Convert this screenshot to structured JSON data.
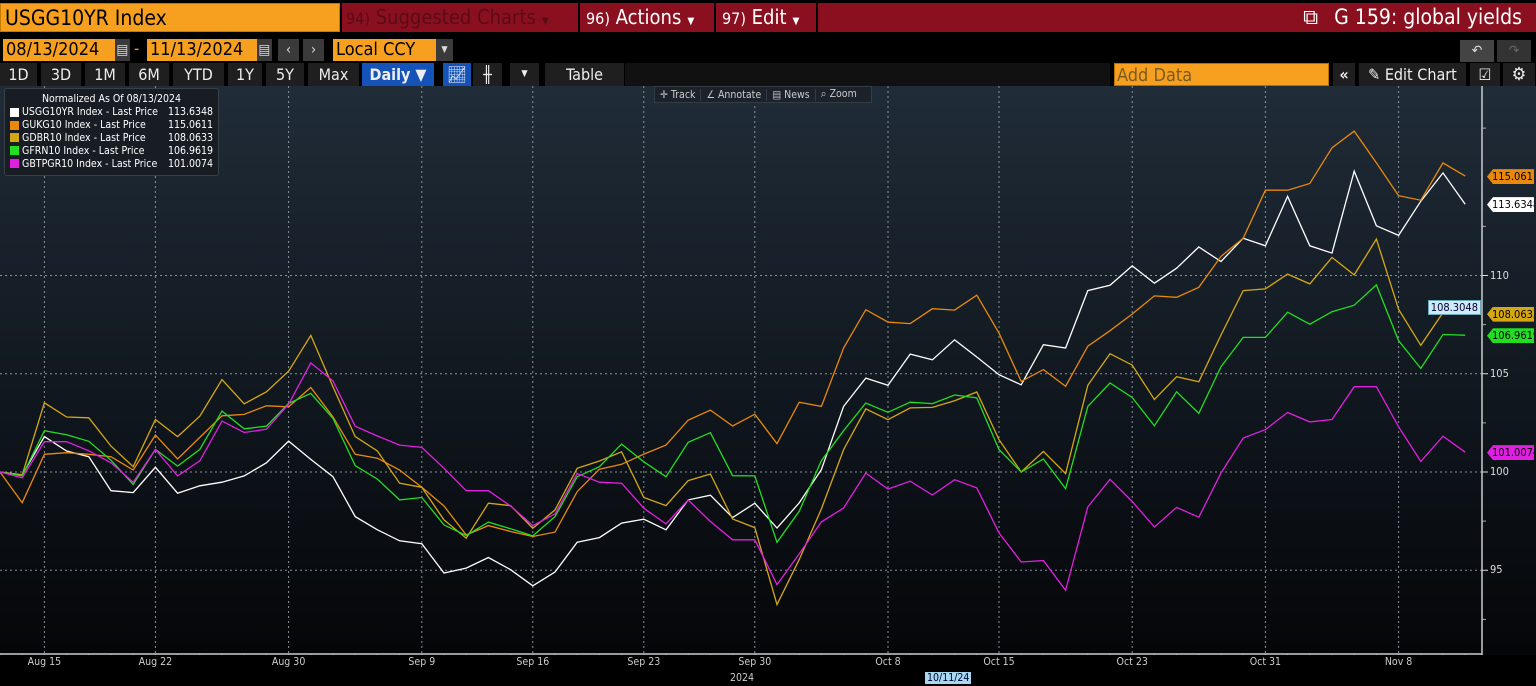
{
  "header": {
    "security": "USGG10YR Index",
    "suggested": {
      "num": "94)",
      "label": "Suggested Charts"
    },
    "actions": {
      "num": "96)",
      "label": "Actions"
    },
    "edit": {
      "num": "97)",
      "label": "Edit"
    },
    "chart_title": "G 159: global yields"
  },
  "controls": {
    "start_date": "08/13/2024",
    "end_date": "11/13/2024",
    "separator": "-",
    "currency": "Local CCY",
    "periods": [
      "1D",
      "3D",
      "1M",
      "6M",
      "YTD",
      "1Y",
      "5Y",
      "Max"
    ],
    "frequency": "Daily ▼",
    "table_label": "Table",
    "add_data_placeholder": "Add Data",
    "edit_chart": "Edit Chart"
  },
  "chart_tools": [
    "Track",
    "Annotate",
    "News",
    "Zoom"
  ],
  "legend": {
    "title": "Normalized As Of 08/13/2024"
  },
  "crosshair": {
    "value": "108.3048",
    "date": "10/11/24"
  },
  "chart_data": {
    "type": "line",
    "title": "",
    "xlabel": "2024",
    "ylim": [
      90.7,
      119.5
    ],
    "grid": true,
    "legend_position": "top-left",
    "y_ticks": [
      95,
      100,
      105,
      110
    ],
    "x_ticks": [
      {
        "date": "2024-08-15",
        "label": "Aug 15"
      },
      {
        "date": "2024-08-22",
        "label": "Aug 22"
      },
      {
        "date": "2024-08-30",
        "label": "Aug 30"
      },
      {
        "date": "2024-09-09",
        "label": "Sep 9"
      },
      {
        "date": "2024-09-16",
        "label": "Sep 16"
      },
      {
        "date": "2024-09-23",
        "label": "Sep 23"
      },
      {
        "date": "2024-09-30",
        "label": "Sep 30"
      },
      {
        "date": "2024-10-08",
        "label": "Oct 8"
      },
      {
        "date": "2024-10-15",
        "label": "Oct 15"
      },
      {
        "date": "2024-10-23",
        "label": "Oct 23"
      },
      {
        "date": "2024-10-31",
        "label": "Oct 31"
      },
      {
        "date": "2024-11-08",
        "label": "Nov 8"
      }
    ],
    "x": [
      "2024-08-13",
      "2024-08-14",
      "2024-08-15",
      "2024-08-16",
      "2024-08-19",
      "2024-08-20",
      "2024-08-21",
      "2024-08-22",
      "2024-08-23",
      "2024-08-26",
      "2024-08-27",
      "2024-08-28",
      "2024-08-29",
      "2024-08-30",
      "2024-09-02",
      "2024-09-03",
      "2024-09-04",
      "2024-09-05",
      "2024-09-06",
      "2024-09-09",
      "2024-09-10",
      "2024-09-11",
      "2024-09-12",
      "2024-09-13",
      "2024-09-16",
      "2024-09-17",
      "2024-09-18",
      "2024-09-19",
      "2024-09-20",
      "2024-09-23",
      "2024-09-24",
      "2024-09-25",
      "2024-09-26",
      "2024-09-27",
      "2024-09-30",
      "2024-10-01",
      "2024-10-02",
      "2024-10-03",
      "2024-10-04",
      "2024-10-07",
      "2024-10-08",
      "2024-10-09",
      "2024-10-10",
      "2024-10-11",
      "2024-10-14",
      "2024-10-15",
      "2024-10-16",
      "2024-10-17",
      "2024-10-18",
      "2024-10-21",
      "2024-10-22",
      "2024-10-23",
      "2024-10-24",
      "2024-10-25",
      "2024-10-28",
      "2024-10-29",
      "2024-10-30",
      "2024-10-31",
      "2024-11-01",
      "2024-11-04",
      "2024-11-05",
      "2024-11-06",
      "2024-11-07",
      "2024-11-08",
      "2024-11-11",
      "2024-11-12",
      "2024-11-13"
    ],
    "series": [
      {
        "name": "USGG10YR Index - Last Price",
        "last": "113.6348",
        "color": "#ffffff",
        "values": [
          100,
          99.85,
          101.8,
          101.07,
          100.78,
          99.05,
          98.95,
          100.24,
          98.92,
          99.3,
          99.48,
          99.8,
          100.47,
          101.57,
          100.64,
          99.76,
          97.73,
          97.06,
          96.5,
          96.35,
          94.86,
          95.11,
          95.65,
          95.03,
          94.21,
          94.91,
          96.43,
          96.66,
          97.4,
          97.6,
          97.06,
          98.58,
          98.82,
          97.68,
          98.41,
          97.15,
          98.43,
          100.12,
          103.34,
          104.78,
          104.41,
          106.0,
          105.71,
          106.73,
          105.85,
          104.95,
          104.44,
          106.48,
          106.31,
          109.23,
          109.5,
          110.49,
          109.61,
          110.37,
          111.45,
          110.71,
          111.9,
          111.51,
          114.03,
          111.51,
          111.14,
          115.31,
          112.53,
          112.04,
          113.78,
          115.22,
          113.63
        ]
      },
      {
        "name": "GUKG10 Index - Last Price",
        "last": "115.0611",
        "color": "#e8890c",
        "values": [
          100,
          98.44,
          100.9,
          100.98,
          100.9,
          100.78,
          100.1,
          101.88,
          100.66,
          101.76,
          102.86,
          102.93,
          103.37,
          103.32,
          104.3,
          102.8,
          100.9,
          100.7,
          100.1,
          99.22,
          98.27,
          96.8,
          97.27,
          96.97,
          96.72,
          96.94,
          99.0,
          100.14,
          100.39,
          100.91,
          101.37,
          102.64,
          103.15,
          102.34,
          102.94,
          101.44,
          103.55,
          103.34,
          106.31,
          108.26,
          107.63,
          107.55,
          108.31,
          108.24,
          109.0,
          107.07,
          104.61,
          105.21,
          104.36,
          106.4,
          107.19,
          108.04,
          108.96,
          108.89,
          109.4,
          110.97,
          111.9,
          114.34,
          114.34,
          114.68,
          116.5,
          117.35,
          115.73,
          114.06,
          113.83,
          115.73,
          115.06
        ]
      },
      {
        "name": "GDBR10 Index - Last Price",
        "last": "108.0633",
        "color": "#d4a814",
        "values": [
          100,
          99.85,
          103.52,
          102.8,
          102.76,
          101.32,
          100.27,
          102.67,
          101.8,
          102.84,
          104.7,
          103.47,
          104.08,
          105.13,
          106.95,
          104.33,
          101.8,
          101.07,
          99.43,
          99.22,
          97.56,
          96.63,
          98.41,
          98.29,
          97.14,
          98.07,
          100.19,
          100.56,
          101.03,
          98.7,
          98.29,
          99.56,
          99.9,
          97.61,
          97.17,
          93.25,
          95.54,
          98.12,
          101.14,
          103.21,
          102.66,
          103.26,
          103.29,
          103.63,
          104.07,
          101.65,
          100.0,
          101.05,
          99.92,
          104.41,
          106.02,
          105.44,
          103.69,
          104.85,
          104.59,
          106.97,
          109.23,
          109.32,
          110.07,
          109.57,
          110.92,
          110.03,
          111.85,
          108.28,
          106.45,
          108.11,
          108.06
        ]
      },
      {
        "name": "GFRN10 Index - Last Price",
        "last": "106.9619",
        "color": "#22dd22",
        "values": [
          100,
          99.8,
          102.1,
          101.9,
          101.56,
          100.6,
          99.37,
          101.15,
          100.3,
          101.15,
          103.1,
          102.2,
          102.33,
          103.49,
          104,
          102.73,
          100.32,
          99.64,
          98.58,
          98.7,
          97.31,
          96.77,
          97.45,
          97.11,
          96.75,
          97.73,
          99.76,
          100.27,
          101.42,
          100.52,
          99.76,
          101.51,
          102.0,
          99.81,
          99.8,
          96.42,
          98.0,
          100.58,
          102.1,
          103.51,
          103.04,
          103.55,
          103.48,
          103.92,
          103.77,
          101.14,
          100.0,
          100.66,
          99.15,
          103.34,
          104.53,
          103.79,
          102.35,
          104.08,
          102.98,
          105.36,
          106.85,
          106.85,
          108.13,
          107.52,
          108.16,
          108.49,
          109.52,
          106.68,
          105.27,
          107.0,
          106.96
        ]
      },
      {
        "name": "GBTPGR10 Index - Last Price",
        "last": "101.0074",
        "color": "#e020e0",
        "values": [
          100,
          99.7,
          101.54,
          101.54,
          101.08,
          100.47,
          99.48,
          101.15,
          99.8,
          100.57,
          102.59,
          102.01,
          102.18,
          103.45,
          105.55,
          104.63,
          102.33,
          101.83,
          101.37,
          101.25,
          100.19,
          99.05,
          99.05,
          98.27,
          97.27,
          97.87,
          99.93,
          99.48,
          99.43,
          98.16,
          97.36,
          98.58,
          97.48,
          96.55,
          96.55,
          94.27,
          95.83,
          97.46,
          98.17,
          99.95,
          99.13,
          99.53,
          98.83,
          99.61,
          99.19,
          96.9,
          95.42,
          95.49,
          93.98,
          98.22,
          99.63,
          98.5,
          97.2,
          98.2,
          97.7,
          99.95,
          101.73,
          102.16,
          103.03,
          102.55,
          102.67,
          104.34,
          104.34,
          102.3,
          100.54,
          101.82,
          101.01
        ]
      }
    ]
  }
}
